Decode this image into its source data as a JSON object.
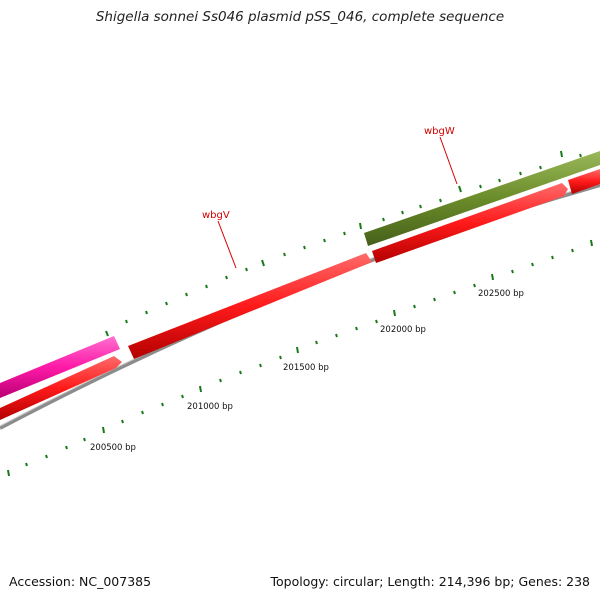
{
  "title": "Shigella sonnei Ss046 plasmid pSS_046, complete sequence",
  "footer": {
    "accession": "Accession: NC_007385",
    "summary": "Topology: circular; Length: 214,396 bp; Genes: 238"
  },
  "colors": {
    "background": "#ffffff",
    "backbone": "#8c8c8c",
    "tick": "#1a7a1a",
    "gene_red": "#ff1a1a",
    "gene_magenta": "#ff1aa8",
    "gene_olive": "#6b8c2a",
    "label_red": "#d40000"
  },
  "genes": [
    {
      "name": "wbgV",
      "strand": "reverse",
      "color": "#ff1a1a"
    },
    {
      "name": "wbgW",
      "strand": "forward",
      "color": "#6b8c2a"
    }
  ],
  "position_labels": [
    "200500 bp",
    "201000 bp",
    "201500 bp",
    "202000 bp",
    "202500 bp"
  ]
}
